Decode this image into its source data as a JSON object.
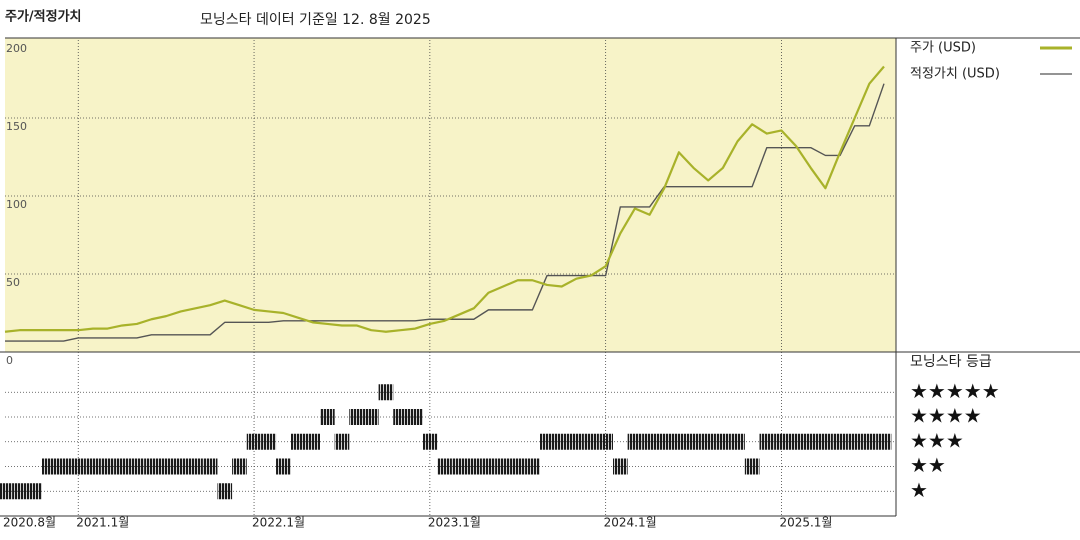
{
  "chart_data": [
    {
      "type": "line",
      "title": "주가/적정가치",
      "subtitle": "모닝스타 데이터 기준일 12. 8월 2025",
      "x": [
        "2020-08",
        "2020-09",
        "2020-10",
        "2020-11",
        "2020-12",
        "2021-01",
        "2021-02",
        "2021-03",
        "2021-04",
        "2021-05",
        "2021-06",
        "2021-07",
        "2021-08",
        "2021-09",
        "2021-10",
        "2021-11",
        "2021-12",
        "2022-01",
        "2022-02",
        "2022-03",
        "2022-04",
        "2022-05",
        "2022-06",
        "2022-07",
        "2022-08",
        "2022-09",
        "2022-10",
        "2022-11",
        "2022-12",
        "2023-01",
        "2023-02",
        "2023-03",
        "2023-04",
        "2023-05",
        "2023-06",
        "2023-07",
        "2023-08",
        "2023-09",
        "2023-10",
        "2023-11",
        "2023-12",
        "2024-01",
        "2024-02",
        "2024-03",
        "2024-04",
        "2024-05",
        "2024-06",
        "2024-07",
        "2024-08",
        "2024-09",
        "2024-10",
        "2024-11",
        "2024-12",
        "2025-01",
        "2025-02",
        "2025-03",
        "2025-04",
        "2025-05",
        "2025-06",
        "2025-07",
        "2025-08"
      ],
      "series": [
        {
          "name": "주가 (USD)",
          "color": "#a8b22a",
          "values": [
            13,
            14,
            14,
            14,
            14,
            14,
            15,
            15,
            17,
            18,
            21,
            23,
            26,
            28,
            30,
            33,
            30,
            27,
            26,
            25,
            22,
            19,
            18,
            17,
            17,
            14,
            13,
            14,
            15,
            18,
            20,
            24,
            28,
            38,
            42,
            46,
            46,
            43,
            42,
            47,
            49,
            55,
            76,
            92,
            88,
            105,
            128,
            118,
            110,
            118,
            135,
            146,
            140,
            142,
            132,
            118,
            105,
            128,
            150,
            172,
            183
          ]
        },
        {
          "name": "적정가치 (USD)",
          "color": "#555555",
          "values": [
            7,
            7,
            7,
            7,
            7,
            9,
            9,
            9,
            9,
            9,
            11,
            11,
            11,
            11,
            11,
            19,
            19,
            19,
            19,
            20,
            20,
            20,
            20,
            20,
            20,
            20,
            20,
            20,
            20,
            21,
            21,
            21,
            21,
            27,
            27,
            27,
            27,
            49,
            49,
            49,
            49,
            49,
            93,
            93,
            93,
            106,
            106,
            106,
            106,
            106,
            106,
            106,
            131,
            131,
            131,
            131,
            126,
            126,
            145,
            145,
            172
          ]
        }
      ],
      "ylim": [
        0,
        200
      ],
      "yticks": [
        0,
        50,
        100,
        150,
        200
      ],
      "grid": true,
      "background": "#f7f3c8"
    },
    {
      "type": "rating-strip",
      "title": "모닝스타 등급",
      "color": "#1a1a1a",
      "x": [
        "2020-08",
        "2020-09",
        "2020-10",
        "2020-11",
        "2020-12",
        "2021-01",
        "2021-02",
        "2021-03",
        "2021-04",
        "2021-05",
        "2021-06",
        "2021-07",
        "2021-08",
        "2021-09",
        "2021-10",
        "2021-11",
        "2021-12",
        "2022-01",
        "2022-02",
        "2022-03",
        "2022-04",
        "2022-05",
        "2022-06",
        "2022-07",
        "2022-08",
        "2022-09",
        "2022-10",
        "2022-11",
        "2022-12",
        "2023-01",
        "2023-02",
        "2023-03",
        "2023-04",
        "2023-05",
        "2023-06",
        "2023-07",
        "2023-08",
        "2023-09",
        "2023-10",
        "2023-11",
        "2023-12",
        "2024-01",
        "2024-02",
        "2024-03",
        "2024-04",
        "2024-05",
        "2024-06",
        "2024-07",
        "2024-08",
        "2024-09",
        "2024-10",
        "2024-11",
        "2024-12",
        "2025-01",
        "2025-02",
        "2025-03",
        "2025-04",
        "2025-05",
        "2025-06",
        "2025-07",
        "2025-08"
      ],
      "values": [
        1,
        1,
        1,
        2,
        2,
        2,
        2,
        2,
        2,
        2,
        2,
        2,
        2,
        2,
        2,
        1,
        2,
        3,
        3,
        2,
        3,
        3,
        4,
        3,
        4,
        4,
        5,
        4,
        4,
        3,
        2,
        2,
        2,
        2,
        2,
        2,
        2,
        3,
        3,
        3,
        3,
        3,
        2,
        3,
        3,
        3,
        3,
        3,
        3,
        3,
        3,
        2,
        3,
        3,
        3,
        3,
        3,
        3,
        3,
        3,
        3
      ],
      "xticks": [
        {
          "value": "2020-08",
          "label": "2020.8월"
        },
        {
          "value": "2021-01",
          "label": "2021.1월"
        },
        {
          "value": "2022-01",
          "label": "2022.1월"
        },
        {
          "value": "2023-01",
          "label": "2023.1월"
        },
        {
          "value": "2024-01",
          "label": "2024.1월"
        },
        {
          "value": "2025-01",
          "label": "2025.1월"
        }
      ],
      "ylim": [
        0,
        6
      ],
      "yticks": [
        {
          "value": 5,
          "label": "★★★★★"
        },
        {
          "value": 4,
          "label": "★★★★"
        },
        {
          "value": 3,
          "label": "★★★"
        },
        {
          "value": 2,
          "label": "★★"
        },
        {
          "value": 1,
          "label": "★"
        }
      ]
    }
  ]
}
